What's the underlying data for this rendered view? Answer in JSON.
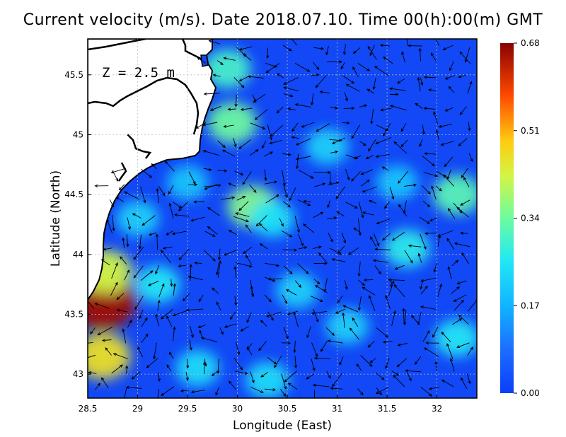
{
  "chart_data": {
    "type": "heatmap",
    "title": "Current velocity (m/s). Date 2018.07.10. Time 00(h):00(m) GMT",
    "xlabel": "Longitude (East)",
    "ylabel": "Latitude (North)",
    "annotation": "Z = 2.5 m",
    "xlim": [
      28.5,
      32.4
    ],
    "ylim": [
      42.8,
      45.8
    ],
    "x_ticks": [
      {
        "value": 28.5,
        "label": "28.5"
      },
      {
        "value": 29,
        "label": "29"
      },
      {
        "value": 29.5,
        "label": "29.5"
      },
      {
        "value": 30,
        "label": "30"
      },
      {
        "value": 30.5,
        "label": "30.5"
      },
      {
        "value": 31,
        "label": "31"
      },
      {
        "value": 31.5,
        "label": "31.5"
      },
      {
        "value": 32,
        "label": "32"
      }
    ],
    "y_ticks": [
      {
        "value": 43,
        "label": "43"
      },
      {
        "value": 43.5,
        "label": "43.5"
      },
      {
        "value": 44,
        "label": "44"
      },
      {
        "value": 44.5,
        "label": "44.5"
      },
      {
        "value": 45,
        "label": "45"
      },
      {
        "value": 45.5,
        "label": "45.5"
      }
    ],
    "grid": true,
    "colorbar": {
      "min": 0.0,
      "max": 0.68,
      "ticks": [
        {
          "value": 0.0,
          "label": "0.00"
        },
        {
          "value": 0.17,
          "label": "0.17"
        },
        {
          "value": 0.34,
          "label": "0.34"
        },
        {
          "value": 0.51,
          "label": "0.51"
        },
        {
          "value": 0.68,
          "label": "0.68"
        }
      ],
      "colormap": "jet"
    },
    "hotspots": [
      {
        "lon": 30.15,
        "lat": 44.4,
        "speed": 0.36
      },
      {
        "lon": 29.95,
        "lat": 45.1,
        "speed": 0.34
      },
      {
        "lon": 29.9,
        "lat": 45.55,
        "speed": 0.3
      },
      {
        "lon": 28.65,
        "lat": 43.6,
        "speed": 0.66
      },
      {
        "lon": 28.68,
        "lat": 43.85,
        "speed": 0.42
      },
      {
        "lon": 28.65,
        "lat": 43.15,
        "speed": 0.46
      },
      {
        "lon": 30.35,
        "lat": 44.3,
        "speed": 0.25
      },
      {
        "lon": 30.9,
        "lat": 44.9,
        "speed": 0.22
      },
      {
        "lon": 31.7,
        "lat": 44.05,
        "speed": 0.27
      },
      {
        "lon": 32.2,
        "lat": 44.5,
        "speed": 0.32
      },
      {
        "lon": 32.2,
        "lat": 43.3,
        "speed": 0.26
      },
      {
        "lon": 29.6,
        "lat": 43.05,
        "speed": 0.24
      },
      {
        "lon": 29.2,
        "lat": 43.75,
        "speed": 0.26
      },
      {
        "lon": 30.6,
        "lat": 43.7,
        "speed": 0.22
      },
      {
        "lon": 29.0,
        "lat": 44.3,
        "speed": 0.22
      },
      {
        "lon": 31.1,
        "lat": 43.4,
        "speed": 0.22
      },
      {
        "lon": 30.3,
        "lat": 42.95,
        "speed": 0.24
      },
      {
        "lon": 31.6,
        "lat": 44.6,
        "speed": 0.2
      },
      {
        "lon": 29.5,
        "lat": 44.6,
        "speed": 0.2
      }
    ],
    "colors": {
      "land": "#ffffff",
      "coastline": "#000000",
      "grid": "#bdbdbd",
      "vector": "#000000",
      "frame": "#000000"
    }
  }
}
